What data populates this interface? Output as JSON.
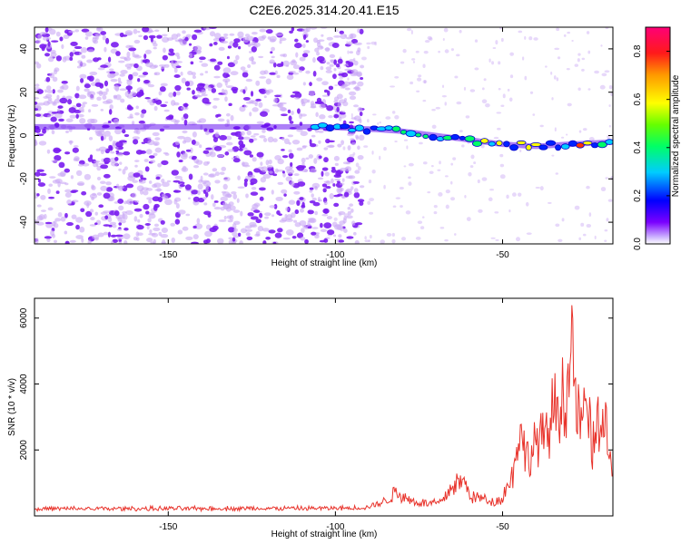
{
  "title": "C2E6.2025.314.20.41.E15",
  "colors": {
    "text": "#000000",
    "snr_line": "#e8322a",
    "scatter": "#7a1cf0",
    "scatter_light": "#c9a8f5"
  },
  "chart_data": [
    {
      "type": "heatmap",
      "name": "spectrogram",
      "xlabel": "Height of straight line (km)",
      "ylabel": "Frequency (Hz)",
      "xlim": [
        -190,
        -17
      ],
      "ylim": [
        -50,
        50
      ],
      "x_ticks": [
        -150,
        -100,
        -50
      ],
      "x_tick_labels": [
        "-150",
        "-100",
        "-50"
      ],
      "y_ticks": [
        -40,
        -20,
        0,
        20,
        40
      ],
      "y_tick_labels": [
        "-40",
        "-20",
        "0",
        "20",
        "40"
      ],
      "colorbar": {
        "label": "Normalized spectral amplitude",
        "range": [
          0,
          0.9
        ],
        "ticks": [
          0.0,
          0.2,
          0.4,
          0.6,
          0.8
        ],
        "tick_labels": [
          "0.0",
          "0.2",
          "0.4",
          "0.6",
          "0.8"
        ]
      },
      "signal_trace": {
        "description": "bright feature around 4 Hz at -104 km drifting to about -4 Hz at -17 km",
        "x": [
          -190,
          -104,
          -90,
          -80,
          -70,
          -60,
          -50,
          -40,
          -30,
          -17
        ],
        "freq": [
          4,
          4,
          3,
          2,
          0,
          -2,
          -4,
          -5,
          -4,
          -3
        ]
      },
      "noise_cutoff_x": -100
    },
    {
      "type": "line",
      "name": "snr",
      "xlabel": "Height of straight line (km)",
      "ylabel": "SNR (10 * v/v)",
      "xlim": [
        -190,
        -17
      ],
      "ylim": [
        0,
        6600
      ],
      "x_ticks": [
        -150,
        -100,
        -50
      ],
      "x_tick_labels": [
        "-150",
        "-100",
        "-50"
      ],
      "y_ticks": [
        2000,
        4000,
        6000
      ],
      "y_tick_labels": [
        "2000",
        "4000",
        "6000"
      ],
      "envelope": {
        "x": [
          -190,
          -100,
          -95,
          -90,
          -85,
          -82,
          -80,
          -77,
          -73,
          -68,
          -65,
          -62,
          -59,
          -57,
          -55,
          -52,
          -50,
          -47,
          -45,
          -43,
          -41,
          -39,
          -37,
          -35,
          -33,
          -31,
          -29,
          -27,
          -25,
          -23,
          -21,
          -19,
          -17
        ],
        "y": [
          200,
          220,
          230,
          280,
          520,
          900,
          750,
          520,
          430,
          480,
          1200,
          1350,
          700,
          650,
          600,
          480,
          700,
          1600,
          3700,
          2300,
          2700,
          3200,
          3000,
          4300,
          4700,
          5000,
          6600,
          3500,
          4500,
          2700,
          4100,
          3300,
          1300
        ]
      }
    }
  ]
}
